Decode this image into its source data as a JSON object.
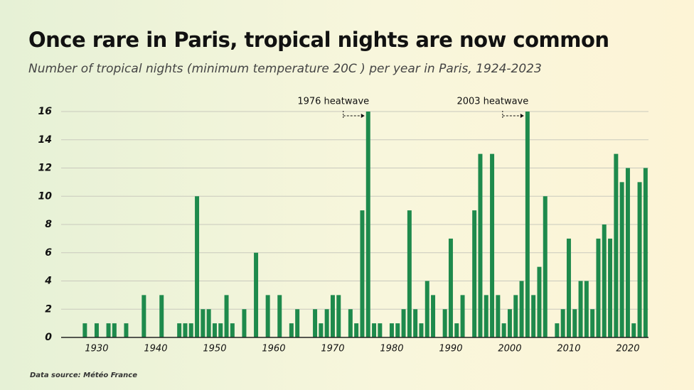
{
  "chart_data": {
    "type": "bar",
    "title": "Once rare in Paris, tropical nights are now common",
    "subtitle": "Number of tropical nights (minimum temperature 20C ) per year in Paris, 1924-2023",
    "source": "Data source: Météo France",
    "color": "#1e8a4c",
    "x": [
      1924,
      1925,
      1926,
      1927,
      1928,
      1929,
      1930,
      1931,
      1932,
      1933,
      1934,
      1935,
      1936,
      1937,
      1938,
      1939,
      1940,
      1941,
      1942,
      1943,
      1944,
      1945,
      1946,
      1947,
      1948,
      1949,
      1950,
      1951,
      1952,
      1953,
      1954,
      1955,
      1956,
      1957,
      1958,
      1959,
      1960,
      1961,
      1962,
      1963,
      1964,
      1965,
      1966,
      1967,
      1968,
      1969,
      1970,
      1971,
      1972,
      1973,
      1974,
      1975,
      1976,
      1977,
      1978,
      1979,
      1980,
      1981,
      1982,
      1983,
      1984,
      1985,
      1986,
      1987,
      1988,
      1989,
      1990,
      1991,
      1992,
      1993,
      1994,
      1995,
      1996,
      1997,
      1998,
      1999,
      2000,
      2001,
      2002,
      2003,
      2004,
      2005,
      2006,
      2007,
      2008,
      2009,
      2010,
      2011,
      2012,
      2013,
      2014,
      2015,
      2016,
      2017,
      2018,
      2019,
      2020,
      2021,
      2022,
      2023
    ],
    "values": [
      0,
      0,
      0,
      0,
      1,
      0,
      1,
      0,
      1,
      1,
      0,
      1,
      0,
      0,
      3,
      0,
      0,
      3,
      0,
      0,
      1,
      1,
      1,
      10,
      2,
      2,
      1,
      1,
      3,
      1,
      0,
      2,
      0,
      6,
      0,
      3,
      0,
      3,
      0,
      1,
      2,
      0,
      0,
      2,
      1,
      2,
      3,
      3,
      0,
      2,
      1,
      9,
      16,
      1,
      1,
      0,
      1,
      1,
      2,
      9,
      2,
      1,
      4,
      3,
      0,
      2,
      7,
      1,
      3,
      0,
      9,
      13,
      3,
      13,
      3,
      1,
      2,
      3,
      4,
      16,
      3,
      5,
      10,
      0,
      1,
      2,
      7,
      2,
      4,
      4,
      2,
      7,
      8,
      7,
      13,
      11,
      12,
      1,
      11,
      12
    ],
    "xlim": [
      1923.5,
      2023.5
    ],
    "xticks": [
      1930,
      1940,
      1950,
      1960,
      1970,
      1980,
      1990,
      2000,
      2010,
      2020
    ],
    "ylim": [
      0,
      16
    ],
    "yticks": [
      0,
      2,
      4,
      6,
      8,
      10,
      12,
      14,
      16
    ],
    "grid": true,
    "annotations": [
      {
        "text": "1976 heatwave",
        "x": 1976
      },
      {
        "text": "2003 heatwave",
        "x": 2003
      }
    ]
  }
}
